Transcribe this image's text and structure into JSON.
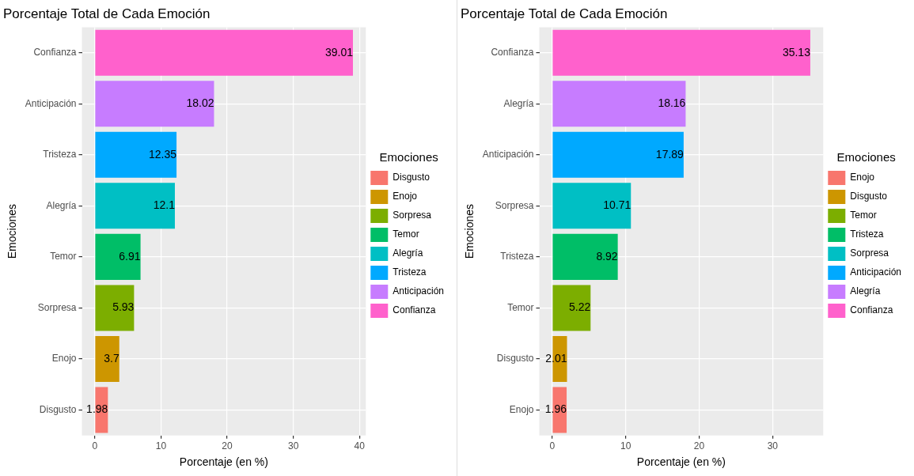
{
  "chart_data": [
    {
      "type": "bar",
      "orientation": "horizontal",
      "title": "Porcentaje Total de Cada Emoción",
      "xlabel": "Porcentaje (en %)",
      "ylabel": "Emociones",
      "legend_title": "Emociones",
      "legend": "right",
      "grid": true,
      "data_labels": true,
      "xlim": [
        -1.95,
        40.96
      ],
      "xticks": [
        0,
        10,
        20,
        30,
        40
      ],
      "categories": [
        "Confianza",
        "Anticipación",
        "Tristeza",
        "Alegría",
        "Temor",
        "Sorpresa",
        "Enojo",
        "Disgusto"
      ],
      "series": [
        {
          "name": "Disgusto",
          "color": "#f8766d",
          "values": [
            null,
            null,
            null,
            null,
            null,
            null,
            null,
            1.98
          ]
        },
        {
          "name": "Enojo",
          "color": "#cd9600",
          "values": [
            null,
            null,
            null,
            null,
            null,
            null,
            3.7,
            null
          ]
        },
        {
          "name": "Sorpresa",
          "color": "#7cae00",
          "values": [
            null,
            null,
            null,
            null,
            null,
            5.93,
            null,
            null
          ]
        },
        {
          "name": "Temor",
          "color": "#00be67",
          "values": [
            null,
            null,
            null,
            null,
            6.91,
            null,
            null,
            null
          ]
        },
        {
          "name": "Alegría",
          "color": "#00bfc4",
          "values": [
            null,
            null,
            null,
            12.1,
            null,
            null,
            null,
            null
          ]
        },
        {
          "name": "Tristeza",
          "color": "#00a9ff",
          "values": [
            null,
            null,
            12.35,
            null,
            null,
            null,
            null,
            null
          ]
        },
        {
          "name": "Anticipación",
          "color": "#c77cff",
          "values": [
            null,
            18.02,
            null,
            null,
            null,
            null,
            null,
            null
          ]
        },
        {
          "name": "Confianza",
          "color": "#ff61cc",
          "values": [
            39.01,
            null,
            null,
            null,
            null,
            null,
            null,
            null
          ]
        }
      ]
    },
    {
      "type": "bar",
      "orientation": "horizontal",
      "title": "Porcentaje Total de Cada Emoción",
      "xlabel": "Porcentaje (en %)",
      "ylabel": "Emociones",
      "legend_title": "Emociones",
      "legend": "right",
      "grid": true,
      "data_labels": true,
      "xlim": [
        -1.76,
        36.89
      ],
      "xticks": [
        0,
        10,
        20,
        30
      ],
      "categories": [
        "Confianza",
        "Alegría",
        "Anticipación",
        "Sorpresa",
        "Tristeza",
        "Temor",
        "Disgusto",
        "Enojo"
      ],
      "series": [
        {
          "name": "Enojo",
          "color": "#f8766d",
          "values": [
            null,
            null,
            null,
            null,
            null,
            null,
            null,
            1.96
          ]
        },
        {
          "name": "Disgusto",
          "color": "#cd9600",
          "values": [
            null,
            null,
            null,
            null,
            null,
            null,
            2.01,
            null
          ]
        },
        {
          "name": "Temor",
          "color": "#7cae00",
          "values": [
            null,
            null,
            null,
            null,
            null,
            5.22,
            null,
            null
          ]
        },
        {
          "name": "Tristeza",
          "color": "#00be67",
          "values": [
            null,
            null,
            null,
            null,
            8.92,
            null,
            null,
            null
          ]
        },
        {
          "name": "Sorpresa",
          "color": "#00bfc4",
          "values": [
            null,
            null,
            null,
            10.71,
            null,
            null,
            null,
            null
          ]
        },
        {
          "name": "Anticipación",
          "color": "#00a9ff",
          "values": [
            null,
            null,
            17.89,
            null,
            null,
            null,
            null,
            null
          ]
        },
        {
          "name": "Alegría",
          "color": "#c77cff",
          "values": [
            null,
            18.16,
            null,
            null,
            null,
            null,
            null,
            null
          ]
        },
        {
          "name": "Confianza",
          "color": "#ff61cc",
          "values": [
            35.13,
            null,
            null,
            null,
            null,
            null,
            null,
            null
          ]
        }
      ]
    }
  ]
}
